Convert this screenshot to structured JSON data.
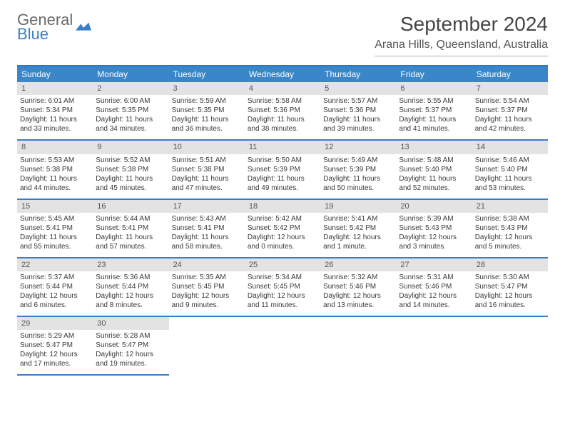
{
  "logo": {
    "line1": "General",
    "line2": "Blue"
  },
  "title": "September 2024",
  "location": "Arana Hills, Queensland, Australia",
  "header_bg": "#3a86c8",
  "border_color": "#3a7fc4",
  "dayband_bg": "#e3e3e3",
  "dayNames": [
    "Sunday",
    "Monday",
    "Tuesday",
    "Wednesday",
    "Thursday",
    "Friday",
    "Saturday"
  ],
  "days": [
    {
      "n": "1",
      "sr": "6:01 AM",
      "ss": "5:34 PM",
      "dl": "11 hours and 33 minutes."
    },
    {
      "n": "2",
      "sr": "6:00 AM",
      "ss": "5:35 PM",
      "dl": "11 hours and 34 minutes."
    },
    {
      "n": "3",
      "sr": "5:59 AM",
      "ss": "5:35 PM",
      "dl": "11 hours and 36 minutes."
    },
    {
      "n": "4",
      "sr": "5:58 AM",
      "ss": "5:36 PM",
      "dl": "11 hours and 38 minutes."
    },
    {
      "n": "5",
      "sr": "5:57 AM",
      "ss": "5:36 PM",
      "dl": "11 hours and 39 minutes."
    },
    {
      "n": "6",
      "sr": "5:55 AM",
      "ss": "5:37 PM",
      "dl": "11 hours and 41 minutes."
    },
    {
      "n": "7",
      "sr": "5:54 AM",
      "ss": "5:37 PM",
      "dl": "11 hours and 42 minutes."
    },
    {
      "n": "8",
      "sr": "5:53 AM",
      "ss": "5:38 PM",
      "dl": "11 hours and 44 minutes."
    },
    {
      "n": "9",
      "sr": "5:52 AM",
      "ss": "5:38 PM",
      "dl": "11 hours and 45 minutes."
    },
    {
      "n": "10",
      "sr": "5:51 AM",
      "ss": "5:38 PM",
      "dl": "11 hours and 47 minutes."
    },
    {
      "n": "11",
      "sr": "5:50 AM",
      "ss": "5:39 PM",
      "dl": "11 hours and 49 minutes."
    },
    {
      "n": "12",
      "sr": "5:49 AM",
      "ss": "5:39 PM",
      "dl": "11 hours and 50 minutes."
    },
    {
      "n": "13",
      "sr": "5:48 AM",
      "ss": "5:40 PM",
      "dl": "11 hours and 52 minutes."
    },
    {
      "n": "14",
      "sr": "5:46 AM",
      "ss": "5:40 PM",
      "dl": "11 hours and 53 minutes."
    },
    {
      "n": "15",
      "sr": "5:45 AM",
      "ss": "5:41 PM",
      "dl": "11 hours and 55 minutes."
    },
    {
      "n": "16",
      "sr": "5:44 AM",
      "ss": "5:41 PM",
      "dl": "11 hours and 57 minutes."
    },
    {
      "n": "17",
      "sr": "5:43 AM",
      "ss": "5:41 PM",
      "dl": "11 hours and 58 minutes."
    },
    {
      "n": "18",
      "sr": "5:42 AM",
      "ss": "5:42 PM",
      "dl": "12 hours and 0 minutes."
    },
    {
      "n": "19",
      "sr": "5:41 AM",
      "ss": "5:42 PM",
      "dl": "12 hours and 1 minute."
    },
    {
      "n": "20",
      "sr": "5:39 AM",
      "ss": "5:43 PM",
      "dl": "12 hours and 3 minutes."
    },
    {
      "n": "21",
      "sr": "5:38 AM",
      "ss": "5:43 PM",
      "dl": "12 hours and 5 minutes."
    },
    {
      "n": "22",
      "sr": "5:37 AM",
      "ss": "5:44 PM",
      "dl": "12 hours and 6 minutes."
    },
    {
      "n": "23",
      "sr": "5:36 AM",
      "ss": "5:44 PM",
      "dl": "12 hours and 8 minutes."
    },
    {
      "n": "24",
      "sr": "5:35 AM",
      "ss": "5:45 PM",
      "dl": "12 hours and 9 minutes."
    },
    {
      "n": "25",
      "sr": "5:34 AM",
      "ss": "5:45 PM",
      "dl": "12 hours and 11 minutes."
    },
    {
      "n": "26",
      "sr": "5:32 AM",
      "ss": "5:46 PM",
      "dl": "12 hours and 13 minutes."
    },
    {
      "n": "27",
      "sr": "5:31 AM",
      "ss": "5:46 PM",
      "dl": "12 hours and 14 minutes."
    },
    {
      "n": "28",
      "sr": "5:30 AM",
      "ss": "5:47 PM",
      "dl": "12 hours and 16 minutes."
    },
    {
      "n": "29",
      "sr": "5:29 AM",
      "ss": "5:47 PM",
      "dl": "12 hours and 17 minutes."
    },
    {
      "n": "30",
      "sr": "5:28 AM",
      "ss": "5:47 PM",
      "dl": "12 hours and 19 minutes."
    }
  ],
  "labels": {
    "sunrise": "Sunrise: ",
    "sunset": "Sunset: ",
    "daylight": "Daylight: "
  }
}
